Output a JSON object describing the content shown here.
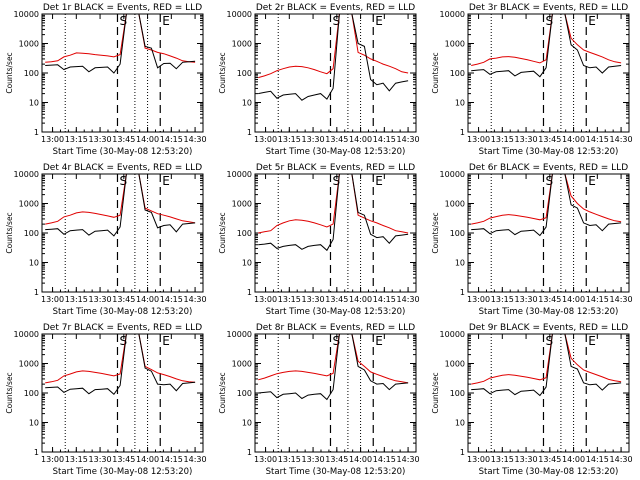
{
  "chart_data": [
    {
      "type": "line",
      "title": "Det 1r BLACK = Events, RED = LLD",
      "xlabel": "Start Time (30-May-08 12:53:20)",
      "ylabel": "Counts/sec",
      "yscale": "log",
      "ylim": [
        1,
        10000
      ],
      "xticks": [
        "13:00",
        "13:15",
        "13:30",
        "13:45",
        "14:00",
        "14:15",
        "14:30"
      ],
      "yticks": [
        "1",
        "10",
        "100",
        "1000",
        "10000"
      ],
      "markers": [
        {
          "label": "S",
          "time": "13:41"
        },
        {
          "label": "E",
          "time": "14:08"
        }
      ],
      "series": [
        {
          "color": "#000000",
          "values": [
            180,
            185,
            190,
            130,
            160,
            165,
            170,
            110,
            150,
            155,
            160,
            100,
            200,
            10000,
            10000,
            10000,
            800,
            700,
            150,
            210,
            215,
            140,
            230,
            240,
            250
          ]
        },
        {
          "color": "#e00000",
          "values": [
            230,
            240,
            260,
            350,
            400,
            480,
            470,
            450,
            420,
            400,
            380,
            350,
            420,
            10000,
            10000,
            10000,
            700,
            600,
            500,
            450,
            380,
            320,
            260,
            240,
            230
          ]
        }
      ]
    },
    {
      "type": "line",
      "title": "Det 2r BLACK = Events, RED = LLD",
      "xlabel": "Start Time (30-May-08 12:53:20)",
      "ylabel": "Counts/sec",
      "yscale": "log",
      "ylim": [
        1,
        10000
      ],
      "xticks": [
        "13:00",
        "13:15",
        "13:30",
        "13:45",
        "14:00",
        "14:15",
        "14:30"
      ],
      "yticks": [
        "1",
        "10",
        "100",
        "1000",
        "10000"
      ],
      "markers": [
        {
          "label": "S",
          "time": "13:41"
        },
        {
          "label": "E",
          "time": "14:08"
        }
      ],
      "series": [
        {
          "color": "#000000",
          "values": [
            20,
            22,
            24,
            14,
            18,
            19,
            20,
            12,
            16,
            18,
            20,
            13,
            30,
            10000,
            10000,
            10000,
            1000,
            800,
            60,
            40,
            45,
            25,
            45,
            50,
            55
          ]
        },
        {
          "color": "#e00000",
          "values": [
            70,
            80,
            95,
            120,
            140,
            160,
            170,
            165,
            150,
            130,
            110,
            95,
            140,
            10000,
            10000,
            10000,
            500,
            400,
            300,
            250,
            200,
            170,
            140,
            110,
            100
          ]
        }
      ]
    },
    {
      "type": "line",
      "title": "Det 3r BLACK = Events, RED = LLD",
      "xlabel": "Start Time (30-May-08 12:53:20)",
      "ylabel": "Counts/sec",
      "yscale": "log",
      "ylim": [
        1,
        10000
      ],
      "xticks": [
        "13:00",
        "13:15",
        "13:30",
        "13:45",
        "14:00",
        "14:15",
        "14:30"
      ],
      "yticks": [
        "1",
        "10",
        "100",
        "1000",
        "10000"
      ],
      "markers": [
        {
          "label": "S",
          "time": "13:41"
        },
        {
          "label": "E",
          "time": "14:08"
        }
      ],
      "series": [
        {
          "color": "#000000",
          "values": [
            120,
            125,
            130,
            90,
            110,
            115,
            120,
            80,
            105,
            110,
            115,
            75,
            150,
            10000,
            10000,
            10000,
            900,
            600,
            180,
            150,
            160,
            100,
            160,
            170,
            180
          ]
        },
        {
          "color": "#e00000",
          "values": [
            180,
            200,
            230,
            300,
            320,
            350,
            360,
            340,
            310,
            280,
            250,
            220,
            280,
            10000,
            10000,
            10000,
            1500,
            900,
            600,
            500,
            420,
            350,
            280,
            240,
            220
          ]
        }
      ]
    },
    {
      "type": "line",
      "title": "Det 4r BLACK = Events, RED = LLD",
      "xlabel": "Start Time (30-May-08 12:53:20)",
      "ylabel": "Counts/sec",
      "yscale": "log",
      "ylim": [
        1,
        10000
      ],
      "xticks": [
        "13:00",
        "13:15",
        "13:30",
        "13:45",
        "14:00",
        "14:15",
        "14:30"
      ],
      "yticks": [
        "1",
        "10",
        "100",
        "1000",
        "10000"
      ],
      "markers": [
        {
          "label": "S",
          "time": "13:41"
        },
        {
          "label": "E",
          "time": "14:08"
        }
      ],
      "series": [
        {
          "color": "#000000",
          "values": [
            130,
            135,
            140,
            90,
            120,
            125,
            130,
            85,
            115,
            120,
            125,
            80,
            160,
            10000,
            10000,
            10000,
            600,
            500,
            150,
            180,
            190,
            110,
            200,
            210,
            220
          ]
        },
        {
          "color": "#e00000",
          "values": [
            200,
            220,
            250,
            350,
            400,
            480,
            520,
            500,
            460,
            420,
            380,
            340,
            400,
            10000,
            10000,
            10000,
            700,
            560,
            450,
            400,
            350,
            300,
            260,
            240,
            220
          ]
        }
      ]
    },
    {
      "type": "line",
      "title": "Det 5r BLACK = Events, RED = LLD",
      "xlabel": "Start Time (30-May-08 12:53:20)",
      "ylabel": "Counts/sec",
      "yscale": "log",
      "ylim": [
        1,
        10000
      ],
      "xticks": [
        "13:00",
        "13:15",
        "13:30",
        "13:45",
        "14:00",
        "14:15",
        "14:30"
      ],
      "yticks": [
        "1",
        "10",
        "100",
        "1000",
        "10000"
      ],
      "markers": [
        {
          "label": "S",
          "time": "13:41"
        },
        {
          "label": "E",
          "time": "14:08"
        }
      ],
      "series": [
        {
          "color": "#000000",
          "values": [
            40,
            42,
            45,
            30,
            35,
            38,
            40,
            28,
            35,
            38,
            40,
            26,
            60,
            10000,
            10000,
            10000,
            500,
            400,
            90,
            70,
            75,
            45,
            80,
            85,
            90
          ]
        },
        {
          "color": "#e00000",
          "values": [
            100,
            110,
            120,
            180,
            220,
            260,
            280,
            270,
            250,
            220,
            190,
            160,
            200,
            10000,
            10000,
            10000,
            400,
            320,
            260,
            220,
            180,
            150,
            120,
            110,
            100
          ]
        }
      ]
    },
    {
      "type": "line",
      "title": "Det 6r BLACK = Events, RED = LLD",
      "xlabel": "Start Time (30-May-08 12:53:20)",
      "ylabel": "Counts/sec",
      "yscale": "log",
      "ylim": [
        1,
        10000
      ],
      "xticks": [
        "13:00",
        "13:15",
        "13:30",
        "13:45",
        "14:00",
        "14:15",
        "14:30"
      ],
      "yticks": [
        "1",
        "10",
        "100",
        "1000",
        "10000"
      ],
      "markers": [
        {
          "label": "S",
          "time": "13:41"
        },
        {
          "label": "E",
          "time": "14:08"
        }
      ],
      "series": [
        {
          "color": "#000000",
          "values": [
            130,
            135,
            140,
            95,
            120,
            125,
            130,
            88,
            115,
            120,
            125,
            82,
            160,
            10000,
            10000,
            10000,
            900,
            700,
            220,
            180,
            190,
            120,
            200,
            210,
            220
          ]
        },
        {
          "color": "#e00000",
          "values": [
            200,
            220,
            250,
            320,
            360,
            400,
            420,
            400,
            370,
            340,
            310,
            280,
            330,
            10000,
            10000,
            10000,
            1800,
            1000,
            650,
            520,
            430,
            360,
            300,
            260,
            240
          ]
        }
      ]
    },
    {
      "type": "line",
      "title": "Det 7r BLACK = Events, RED = LLD",
      "xlabel": "Start Time (30-May-08 12:53:20)",
      "ylabel": "Counts/sec",
      "yscale": "log",
      "ylim": [
        1,
        10000
      ],
      "xticks": [
        "13:00",
        "13:15",
        "13:30",
        "13:45",
        "14:00",
        "14:15",
        "14:30"
      ],
      "yticks": [
        "1",
        "10",
        "100",
        "1000",
        "10000"
      ],
      "markers": [
        {
          "label": "S",
          "time": "13:41"
        },
        {
          "label": "E",
          "time": "14:08"
        }
      ],
      "series": [
        {
          "color": "#000000",
          "values": [
            150,
            155,
            160,
            105,
            135,
            140,
            145,
            95,
            130,
            135,
            140,
            90,
            180,
            10000,
            10000,
            10000,
            700,
            550,
            200,
            190,
            200,
            120,
            210,
            220,
            230
          ]
        },
        {
          "color": "#e00000",
          "values": [
            220,
            240,
            270,
            380,
            440,
            520,
            560,
            540,
            500,
            460,
            420,
            380,
            440,
            10000,
            10000,
            10000,
            800,
            620,
            480,
            420,
            360,
            300,
            260,
            240,
            230
          ]
        }
      ]
    },
    {
      "type": "line",
      "title": "Det 8r BLACK = Events, RED = LLD",
      "xlabel": "Start Time (30-May-08 12:53:20)",
      "ylabel": "Counts/sec",
      "yscale": "log",
      "ylim": [
        1,
        10000
      ],
      "xticks": [
        "13:00",
        "13:15",
        "13:30",
        "13:45",
        "14:00",
        "14:15",
        "14:30"
      ],
      "yticks": [
        "1",
        "10",
        "100",
        "1000",
        "10000"
      ],
      "markers": [
        {
          "label": "S",
          "time": "13:41"
        },
        {
          "label": "E",
          "time": "14:08"
        }
      ],
      "series": [
        {
          "color": "#000000",
          "values": [
            100,
            105,
            110,
            70,
            90,
            95,
            100,
            65,
            85,
            90,
            95,
            60,
            130,
            10000,
            10000,
            10000,
            800,
            600,
            260,
            200,
            210,
            130,
            200,
            210,
            220
          ]
        },
        {
          "color": "#e00000",
          "values": [
            280,
            320,
            380,
            450,
            500,
            540,
            560,
            540,
            500,
            460,
            420,
            380,
            460,
            10000,
            10000,
            10000,
            1200,
            800,
            520,
            430,
            360,
            300,
            260,
            240,
            220
          ]
        }
      ]
    },
    {
      "type": "line",
      "title": "Det 9r BLACK = Events, RED = LLD",
      "xlabel": "Start Time (30-May-08 12:53:20)",
      "ylabel": "Counts/sec",
      "yscale": "log",
      "ylim": [
        1,
        10000
      ],
      "xticks": [
        "13:00",
        "13:15",
        "13:30",
        "13:45",
        "14:00",
        "14:15",
        "14:30"
      ],
      "yticks": [
        "1",
        "10",
        "100",
        "1000",
        "10000"
      ],
      "markers": [
        {
          "label": "S",
          "time": "13:41"
        },
        {
          "label": "E",
          "time": "14:08"
        }
      ],
      "series": [
        {
          "color": "#000000",
          "values": [
            130,
            135,
            140,
            95,
            120,
            125,
            130,
            88,
            115,
            120,
            125,
            82,
            160,
            10000,
            10000,
            10000,
            800,
            650,
            220,
            190,
            200,
            125,
            200,
            210,
            220
          ]
        },
        {
          "color": "#e00000",
          "values": [
            200,
            220,
            250,
            320,
            360,
            400,
            420,
            400,
            370,
            340,
            310,
            280,
            330,
            10000,
            10000,
            10000,
            1500,
            900,
            600,
            500,
            420,
            350,
            290,
            260,
            240
          ]
        }
      ]
    }
  ]
}
